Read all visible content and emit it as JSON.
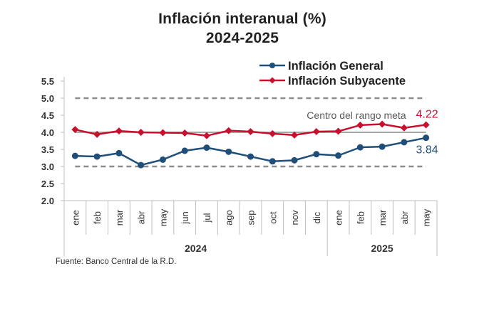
{
  "chart_data": {
    "type": "line",
    "title": "Inflación interanual (%)",
    "subtitle": "2024-2025",
    "xlabel": "",
    "ylabel": "",
    "ylim": [
      2.0,
      5.5
    ],
    "yticks": [
      "2.0",
      "2.5",
      "3.0",
      "3.5",
      "4.0",
      "4.5",
      "5.0",
      "5.5"
    ],
    "ytick_values": [
      2.0,
      2.5,
      3.0,
      3.5,
      4.0,
      4.5,
      5.0,
      5.5
    ],
    "categories": [
      "ene",
      "feb",
      "mar",
      "abr",
      "may",
      "jun",
      "jul",
      "ago",
      "sep",
      "oct",
      "nov",
      "dic",
      "ene",
      "feb",
      "mar",
      "abr",
      "may"
    ],
    "year_groups": [
      {
        "label": "2024",
        "count": 12
      },
      {
        "label": "2025",
        "count": 5
      }
    ],
    "series": [
      {
        "name": "Inflación General",
        "color": "#1f4e79",
        "marker": "circle",
        "values": [
          3.31,
          3.29,
          3.39,
          3.04,
          3.2,
          3.46,
          3.55,
          3.43,
          3.29,
          3.15,
          3.18,
          3.36,
          3.32,
          3.56,
          3.58,
          3.71,
          3.84
        ],
        "end_label": "3.84"
      },
      {
        "name": "Inflación Subyacente",
        "color": "#c8102e",
        "marker": "diamond",
        "values": [
          4.08,
          3.94,
          4.04,
          4.0,
          3.99,
          3.98,
          3.9,
          4.05,
          4.02,
          3.96,
          3.92,
          4.02,
          4.03,
          4.21,
          4.24,
          4.13,
          4.22
        ],
        "end_label": "4.22"
      }
    ],
    "reference_lines": [
      {
        "value": 5.0,
        "style": "dashed",
        "color": "#8c8c8c",
        "label": ""
      },
      {
        "value": 4.0,
        "style": "solid",
        "color": "#a6a6a6",
        "label": "Centro del rango meta"
      },
      {
        "value": 3.0,
        "style": "dashed",
        "color": "#8c8c8c",
        "label": ""
      }
    ],
    "legend": {
      "position": "top-right"
    },
    "grid": false
  },
  "source": "Fuente: Banco Central de la R.D."
}
